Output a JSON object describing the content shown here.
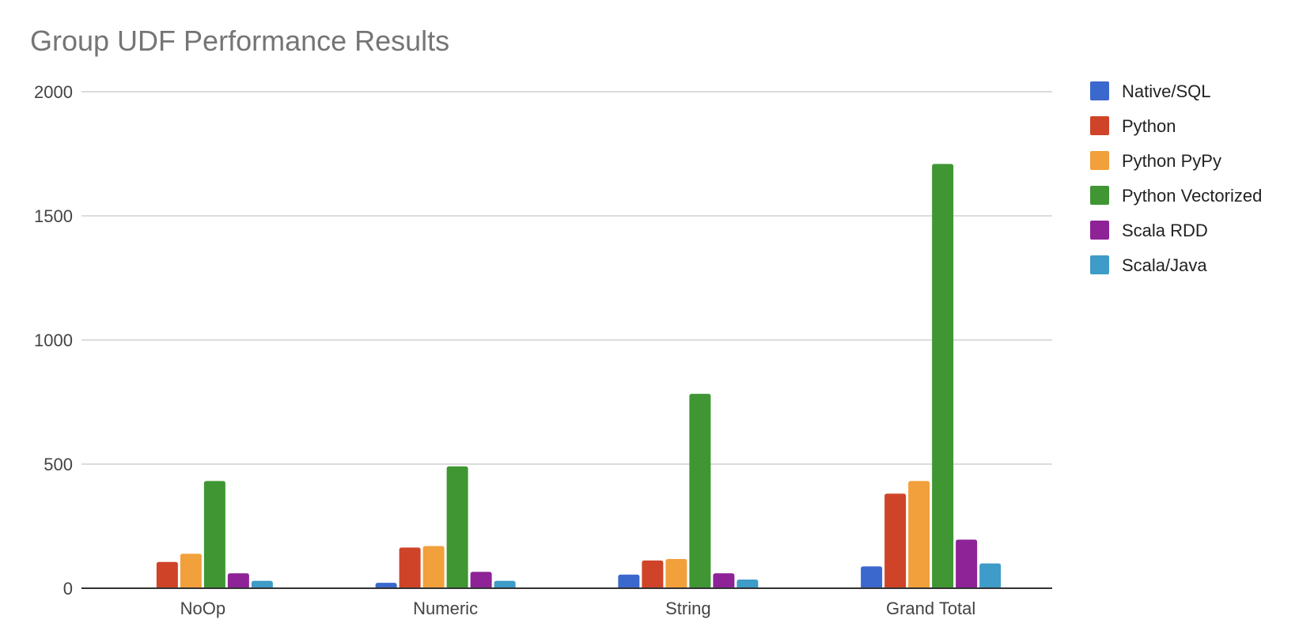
{
  "chart_data": {
    "type": "bar",
    "title": "Group UDF Performance Results",
    "xlabel": "",
    "ylabel": "",
    "categories": [
      "NoOp",
      "Numeric",
      "String",
      "Grand Total"
    ],
    "ylim": [
      0,
      2000
    ],
    "yticks": [
      0,
      500,
      1000,
      1500,
      2000
    ],
    "grid": true,
    "legend_position": "right",
    "series": [
      {
        "name": "Native/SQL",
        "color": "#3b68cc",
        "values": [
          0,
          22,
          55,
          88
        ]
      },
      {
        "name": "Python",
        "color": "#cf4429",
        "values": [
          106,
          164,
          112,
          381
        ]
      },
      {
        "name": "Python PyPy",
        "color": "#f2a03b",
        "values": [
          139,
          170,
          118,
          432
        ]
      },
      {
        "name": "Python Vectorized",
        "color": "#3f9633",
        "values": [
          432,
          491,
          783,
          1709
        ]
      },
      {
        "name": "Scala RDD",
        "color": "#8e2398",
        "values": [
          60,
          66,
          60,
          196
        ]
      },
      {
        "name": "Scala/Java",
        "color": "#3f9bc8",
        "values": [
          30,
          30,
          35,
          100
        ]
      }
    ]
  }
}
